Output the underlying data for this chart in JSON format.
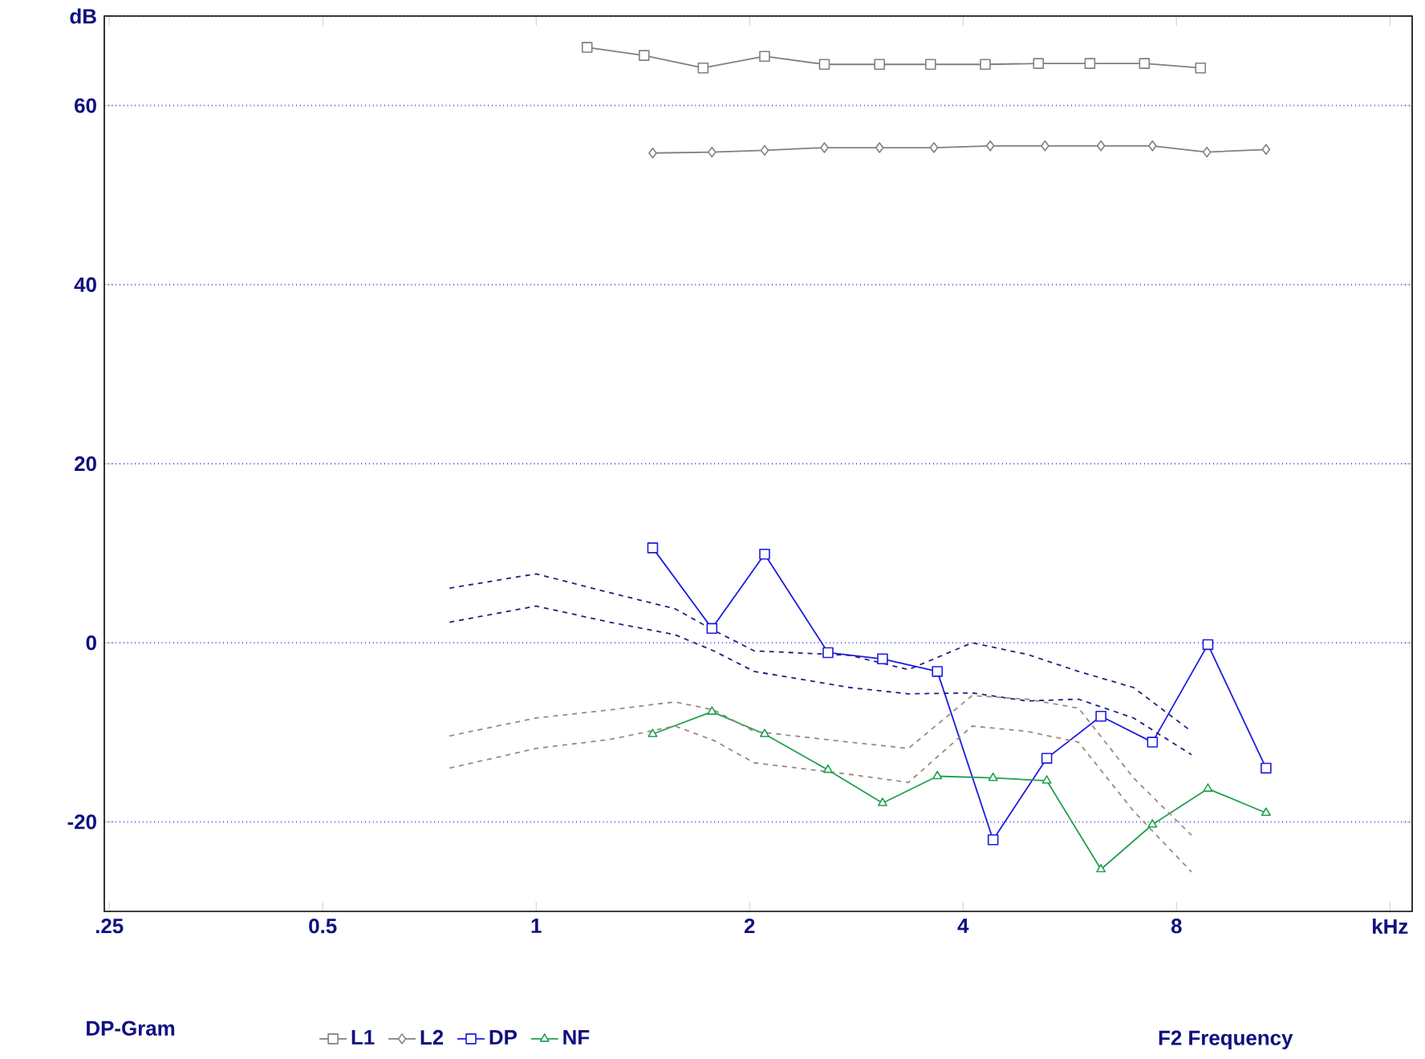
{
  "chart_data": {
    "type": "line",
    "title": "DP-Gram",
    "xlabel": "F2 Frequency",
    "log": "x",
    "grid": "y",
    "legend": "bottom",
    "xlim": [
      0.246,
      17.2
    ],
    "xticks": [
      {
        "value": 0.25,
        "label": ".25"
      },
      0.5,
      1,
      2,
      4,
      8,
      {
        "value": 16,
        "label": "kHz"
      }
    ],
    "ylim": [
      -30,
      70
    ],
    "yticks": [
      -20,
      0,
      20,
      40,
      60,
      {
        "value": 70,
        "label": "dB"
      }
    ],
    "series": [
      {
        "name": "L1",
        "color": "#808080",
        "marker": "square",
        "line_style": "solid",
        "x": [
          1.18,
          1.42,
          1.72,
          2.1,
          2.55,
          3.05,
          3.6,
          4.3,
          5.11,
          6.04,
          7.21,
          8.65
        ],
        "values": [
          66.5,
          65.6,
          64.2,
          65.5,
          64.6,
          64.6,
          64.6,
          64.6,
          64.7,
          64.7,
          64.7,
          64.2
        ]
      },
      {
        "name": "L2",
        "color": "#808080",
        "marker": "diamond",
        "line_style": "solid",
        "x": [
          1.46,
          1.77,
          2.1,
          2.55,
          3.05,
          3.64,
          4.37,
          5.22,
          6.26,
          7.4,
          8.83,
          10.7
        ],
        "values": [
          54.7,
          54.8,
          55.0,
          55.3,
          55.3,
          55.3,
          55.5,
          55.5,
          55.5,
          55.5,
          54.8,
          55.1
        ]
      },
      {
        "name": "DP",
        "color": "#1c1ce0",
        "marker": "square",
        "line_style": "solid",
        "x": [
          1.46,
          1.77,
          2.1,
          2.58,
          3.08,
          3.68,
          4.41,
          5.25,
          6.26,
          7.4,
          8.86,
          10.7
        ],
        "values": [
          10.6,
          1.6,
          9.9,
          -1.1,
          -1.8,
          -3.2,
          -22.0,
          -12.9,
          -8.2,
          -11.1,
          -0.2,
          -14.0
        ]
      },
      {
        "name": "NF",
        "color": "#20a050",
        "marker": "triangle",
        "line_style": "solid",
        "x": [
          1.46,
          1.77,
          2.1,
          2.58,
          3.08,
          3.68,
          4.41,
          5.25,
          6.26,
          7.4,
          8.86,
          10.7
        ],
        "values": [
          -10.2,
          -7.7,
          -10.2,
          -14.2,
          -17.9,
          -14.9,
          -15.1,
          -15.4,
          -25.3,
          -20.3,
          -16.3,
          -19.0
        ]
      },
      {
        "color": "#202080",
        "marker": "none",
        "line_style": "dashed",
        "x": [
          0.755,
          1,
          1.27,
          1.57,
          1.78,
          2.03,
          2.77,
          3.35,
          4.12,
          4.93,
          5.82,
          6.96,
          8.4
        ],
        "values": [
          6.1,
          7.7,
          5.6,
          3.8,
          1.4,
          -0.9,
          -1.4,
          -3.0,
          0,
          -1.3,
          -3.2,
          -5.0,
          -9.9
        ]
      },
      {
        "color": "#202080",
        "marker": "none",
        "line_style": "dashed",
        "x": [
          0.755,
          1,
          1.27,
          1.57,
          1.78,
          2.03,
          2.77,
          3.35,
          4.12,
          4.93,
          5.82,
          6.96,
          8.4
        ],
        "values": [
          2.3,
          4.1,
          2.3,
          0.9,
          -0.9,
          -3.2,
          -5.0,
          -5.7,
          -5.6,
          -6.5,
          -6.3,
          -8.4,
          -12.5
        ]
      },
      {
        "color": "#a08878",
        "marker": "none",
        "line_style": "dashed",
        "x": [
          0.755,
          1,
          1.27,
          1.57,
          1.78,
          2.03,
          2.77,
          3.35,
          4.12,
          4.93,
          5.82,
          6.96,
          8.4
        ],
        "values": [
          -10.4,
          -8.4,
          -7.5,
          -6.6,
          -7.5,
          -9.9,
          -11.1,
          -11.8,
          -5.9,
          -6.3,
          -7.3,
          -15.1,
          -21.5
        ]
      },
      {
        "color": "#a08878",
        "marker": "none",
        "line_style": "dashed",
        "x": [
          0.755,
          1,
          1.27,
          1.57,
          1.78,
          2.03,
          2.77,
          3.35,
          4.12,
          4.93,
          5.82,
          6.96,
          8.4
        ],
        "values": [
          -14.0,
          -11.8,
          -10.8,
          -9.3,
          -10.9,
          -13.4,
          -14.7,
          -15.6,
          -9.3,
          -9.9,
          -11.1,
          -18.8,
          -25.6
        ]
      }
    ]
  }
}
